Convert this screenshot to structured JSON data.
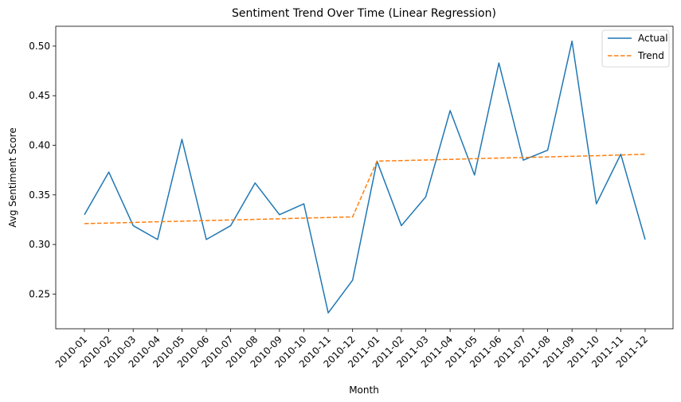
{
  "chart_data": {
    "type": "line",
    "title": "Sentiment Trend Over Time (Linear Regression)",
    "xlabel": "Month",
    "ylabel": "Avg Sentiment Score",
    "categories": [
      "2010-01",
      "2010-02",
      "2010-03",
      "2010-04",
      "2010-05",
      "2010-06",
      "2010-07",
      "2010-08",
      "2010-09",
      "2010-10",
      "2010-11",
      "2010-12",
      "2011-01",
      "2011-02",
      "2011-03",
      "2011-04",
      "2011-05",
      "2011-06",
      "2011-07",
      "2011-08",
      "2011-09",
      "2011-10",
      "2011-11",
      "2011-12"
    ],
    "ylim": [
      0.215,
      0.52
    ],
    "yticks": [
      0.25,
      0.3,
      0.35,
      0.4,
      0.45,
      0.5
    ],
    "ytick_labels": [
      "0.25",
      "0.30",
      "0.35",
      "0.40",
      "0.45",
      "0.50"
    ],
    "grid": false,
    "legend_position": "top-right",
    "series": [
      {
        "name": "Actual",
        "color": "#1f77b4",
        "style": "solid",
        "values": [
          0.33,
          0.373,
          0.319,
          0.305,
          0.406,
          0.305,
          0.319,
          0.362,
          0.33,
          0.341,
          0.231,
          0.264,
          0.384,
          0.319,
          0.348,
          0.435,
          0.37,
          0.483,
          0.385,
          0.395,
          0.505,
          0.341,
          0.391,
          0.305
        ]
      },
      {
        "name": "Trend",
        "color": "#ff7f0e",
        "style": "dashed",
        "values": [
          0.321,
          0.3216,
          0.3222,
          0.3229,
          0.3235,
          0.3241,
          0.3247,
          0.3253,
          0.3259,
          0.3266,
          0.3272,
          0.3278,
          0.384,
          0.3846,
          0.3852,
          0.3858,
          0.3865,
          0.3871,
          0.3877,
          0.3883,
          0.3889,
          0.3895,
          0.3902,
          0.391
        ]
      }
    ]
  }
}
